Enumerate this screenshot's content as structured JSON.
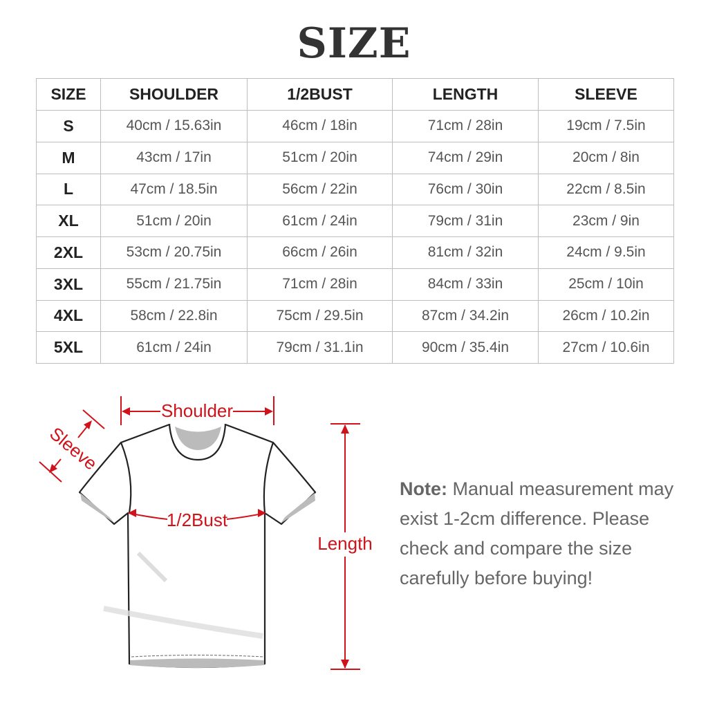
{
  "title": "SIZE",
  "table": {
    "headers": [
      "SIZE",
      "SHOULDER",
      "1/2BUST",
      "LENGTH",
      "SLEEVE"
    ],
    "rows": [
      [
        "S",
        "40cm / 15.63in",
        "46cm / 18in",
        "71cm / 28in",
        "19cm / 7.5in"
      ],
      [
        "M",
        "43cm / 17in",
        "51cm / 20in",
        "74cm / 29in",
        "20cm / 8in"
      ],
      [
        "L",
        "47cm / 18.5in",
        "56cm / 22in",
        "76cm / 30in",
        "22cm / 8.5in"
      ],
      [
        "XL",
        "51cm / 20in",
        "61cm / 24in",
        "79cm / 31in",
        "23cm / 9in"
      ],
      [
        "2XL",
        "53cm / 20.75in",
        "66cm / 26in",
        "81cm / 32in",
        "24cm / 9.5in"
      ],
      [
        "3XL",
        "55cm / 21.75in",
        "71cm / 28in",
        "84cm / 33in",
        "25cm / 10in"
      ],
      [
        "4XL",
        "58cm / 22.8in",
        "75cm / 29.5in",
        "87cm / 34.2in",
        "26cm / 10.2in"
      ],
      [
        "5XL",
        "61cm / 24in",
        "79cm / 31.1in",
        "90cm / 35.4in",
        "27cm / 10.6in"
      ]
    ]
  },
  "diagram": {
    "shoulder_label": "Shoulder",
    "sleeve_label": "Sleeve",
    "bust_label": "1/2Bust",
    "length_label": "Length",
    "accent_color": "#d0121b"
  },
  "note": {
    "label": "Note:",
    "text": "Manual measurement may exist 1-2cm difference. Please check and compare the size carefully before buying!"
  }
}
